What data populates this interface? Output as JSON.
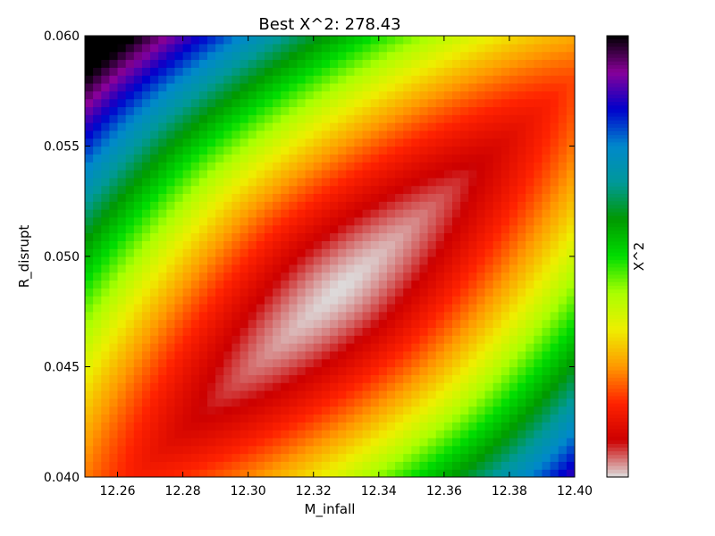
{
  "chart_data": {
    "type": "heatmap",
    "title": "Best X^2: 278.43",
    "xlabel": "M_infall",
    "ylabel": "R_disrupt",
    "xlim": [
      12.25,
      12.4
    ],
    "ylim": [
      0.04,
      0.06
    ],
    "x_ticks": [
      "12.26",
      "12.28",
      "12.30",
      "12.32",
      "12.34",
      "12.36",
      "12.38",
      "12.40"
    ],
    "x_tick_values": [
      12.26,
      12.28,
      12.3,
      12.32,
      12.34,
      12.36,
      12.38,
      12.4
    ],
    "y_ticks": [
      "0.040",
      "0.045",
      "0.050",
      "0.055",
      "0.060"
    ],
    "y_tick_values": [
      0.04,
      0.045,
      0.05,
      0.055,
      0.06
    ],
    "colorbar": {
      "label": "X^2",
      "colormap": "nipy_spectral_r",
      "stops": [
        "#dddddd",
        "#cc0000",
        "#ff2200",
        "#ff9900",
        "#eeee00",
        "#aaff00",
        "#00dd00",
        "#009900",
        "#009999",
        "#0088cc",
        "#0000cc",
        "#880099",
        "#000000"
      ]
    },
    "minimum": {
      "M_infall": 12.328,
      "R_disrupt": 0.0485,
      "chi2": 278.43
    },
    "grid": false
  }
}
